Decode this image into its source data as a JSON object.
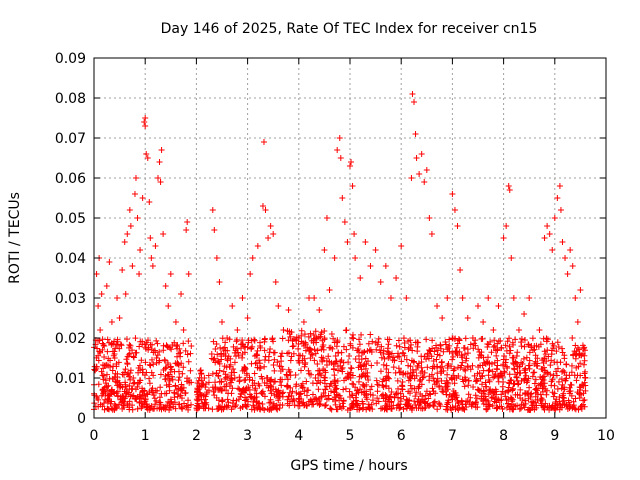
{
  "chart_data": {
    "type": "scatter",
    "title": "Day 146 of 2025, Rate Of TEC Index for receiver cn15",
    "xlabel": "GPS time / hours",
    "ylabel": "ROTI / TECUs",
    "xlim": [
      0,
      10
    ],
    "ylim": [
      0,
      0.09
    ],
    "x_ticks": [
      "0",
      "1",
      "2",
      "3",
      "4",
      "5",
      "6",
      "7",
      "8",
      "9",
      "10"
    ],
    "y_ticks": [
      "0",
      "0.01",
      "0.02",
      "0.03",
      "0.04",
      "0.05",
      "0.06",
      "0.07",
      "0.08",
      "0.09"
    ],
    "grid": true,
    "marker": "+",
    "colors": {
      "series": "#ff0000",
      "grid": "#a0a0a0",
      "axis": "#000000"
    },
    "series": [
      {
        "name": "ROTI",
        "points": [
          [
            0.02,
            0.012
          ],
          [
            0.05,
            0.036
          ],
          [
            0.08,
            0.028
          ],
          [
            0.1,
            0.04
          ],
          [
            0.12,
            0.022
          ],
          [
            0.15,
            0.031
          ],
          [
            0.2,
            0.018
          ],
          [
            0.25,
            0.033
          ],
          [
            0.3,
            0.039
          ],
          [
            0.35,
            0.024
          ],
          [
            0.4,
            0.016
          ],
          [
            0.45,
            0.03
          ],
          [
            0.5,
            0.025
          ],
          [
            0.55,
            0.037
          ],
          [
            0.6,
            0.044
          ],
          [
            0.62,
            0.031
          ],
          [
            0.65,
            0.046
          ],
          [
            0.7,
            0.052
          ],
          [
            0.72,
            0.048
          ],
          [
            0.75,
            0.038
          ],
          [
            0.8,
            0.056
          ],
          [
            0.82,
            0.06
          ],
          [
            0.85,
            0.05
          ],
          [
            0.88,
            0.036
          ],
          [
            0.9,
            0.042
          ],
          [
            0.95,
            0.055
          ],
          [
            0.98,
            0.074
          ],
          [
            1.0,
            0.075
          ],
          [
            1.0,
            0.073
          ],
          [
            1.02,
            0.066
          ],
          [
            1.05,
            0.065
          ],
          [
            1.08,
            0.054
          ],
          [
            1.1,
            0.045
          ],
          [
            1.12,
            0.04
          ],
          [
            1.15,
            0.038
          ],
          [
            1.2,
            0.043
          ],
          [
            1.25,
            0.06
          ],
          [
            1.28,
            0.064
          ],
          [
            1.3,
            0.059
          ],
          [
            1.32,
            0.067
          ],
          [
            1.35,
            0.046
          ],
          [
            1.4,
            0.033
          ],
          [
            1.45,
            0.028
          ],
          [
            1.5,
            0.036
          ],
          [
            1.6,
            0.024
          ],
          [
            1.7,
            0.031
          ],
          [
            1.75,
            0.022
          ],
          [
            1.8,
            0.047
          ],
          [
            1.82,
            0.049
          ],
          [
            1.85,
            0.036
          ],
          [
            1.9,
            0.018
          ],
          [
            2.05,
            0.008
          ],
          [
            2.1,
            0.011
          ],
          [
            2.2,
            0.006
          ],
          [
            2.3,
            0.016
          ],
          [
            2.32,
            0.052
          ],
          [
            2.35,
            0.047
          ],
          [
            2.4,
            0.04
          ],
          [
            2.45,
            0.034
          ],
          [
            2.5,
            0.024
          ],
          [
            2.6,
            0.02
          ],
          [
            2.7,
            0.028
          ],
          [
            2.8,
            0.022
          ],
          [
            2.9,
            0.03
          ],
          [
            3.0,
            0.025
          ],
          [
            3.05,
            0.036
          ],
          [
            3.1,
            0.04
          ],
          [
            3.2,
            0.043
          ],
          [
            3.3,
            0.053
          ],
          [
            3.32,
            0.069
          ],
          [
            3.35,
            0.052
          ],
          [
            3.4,
            0.045
          ],
          [
            3.45,
            0.048
          ],
          [
            3.5,
            0.046
          ],
          [
            3.55,
            0.034
          ],
          [
            3.6,
            0.028
          ],
          [
            3.7,
            0.022
          ],
          [
            3.8,
            0.027
          ],
          [
            3.9,
            0.018
          ],
          [
            4.0,
            0.02
          ],
          [
            4.1,
            0.024
          ],
          [
            4.2,
            0.03
          ],
          [
            4.3,
            0.03
          ],
          [
            4.4,
            0.027
          ],
          [
            4.5,
            0.042
          ],
          [
            4.55,
            0.05
          ],
          [
            4.6,
            0.032
          ],
          [
            4.7,
            0.04
          ],
          [
            4.75,
            0.067
          ],
          [
            4.8,
            0.07
          ],
          [
            4.82,
            0.065
          ],
          [
            4.85,
            0.055
          ],
          [
            4.9,
            0.049
          ],
          [
            4.95,
            0.044
          ],
          [
            5.0,
            0.063
          ],
          [
            5.02,
            0.064
          ],
          [
            5.05,
            0.058
          ],
          [
            5.08,
            0.046
          ],
          [
            5.1,
            0.04
          ],
          [
            5.2,
            0.035
          ],
          [
            5.3,
            0.044
          ],
          [
            5.4,
            0.038
          ],
          [
            5.5,
            0.042
          ],
          [
            5.6,
            0.034
          ],
          [
            5.7,
            0.038
          ],
          [
            5.8,
            0.03
          ],
          [
            5.9,
            0.035
          ],
          [
            6.0,
            0.043
          ],
          [
            6.1,
            0.03
          ],
          [
            6.2,
            0.06
          ],
          [
            6.22,
            0.081
          ],
          [
            6.25,
            0.079
          ],
          [
            6.28,
            0.071
          ],
          [
            6.3,
            0.065
          ],
          [
            6.35,
            0.061
          ],
          [
            6.4,
            0.066
          ],
          [
            6.45,
            0.059
          ],
          [
            6.5,
            0.062
          ],
          [
            6.55,
            0.05
          ],
          [
            6.6,
            0.046
          ],
          [
            6.7,
            0.028
          ],
          [
            6.8,
            0.025
          ],
          [
            6.9,
            0.03
          ],
          [
            7.0,
            0.056
          ],
          [
            7.05,
            0.052
          ],
          [
            7.1,
            0.048
          ],
          [
            7.15,
            0.037
          ],
          [
            7.2,
            0.03
          ],
          [
            7.3,
            0.025
          ],
          [
            7.4,
            0.02
          ],
          [
            7.5,
            0.028
          ],
          [
            7.6,
            0.024
          ],
          [
            7.7,
            0.03
          ],
          [
            7.8,
            0.022
          ],
          [
            7.9,
            0.028
          ],
          [
            8.0,
            0.045
          ],
          [
            8.05,
            0.048
          ],
          [
            8.1,
            0.058
          ],
          [
            8.12,
            0.057
          ],
          [
            8.15,
            0.04
          ],
          [
            8.2,
            0.03
          ],
          [
            8.3,
            0.022
          ],
          [
            8.4,
            0.026
          ],
          [
            8.5,
            0.03
          ],
          [
            8.6,
            0.018
          ],
          [
            8.7,
            0.022
          ],
          [
            8.8,
            0.045
          ],
          [
            8.85,
            0.048
          ],
          [
            8.9,
            0.046
          ],
          [
            8.95,
            0.042
          ],
          [
            9.0,
            0.05
          ],
          [
            9.05,
            0.055
          ],
          [
            9.1,
            0.058
          ],
          [
            9.12,
            0.052
          ],
          [
            9.15,
            0.044
          ],
          [
            9.2,
            0.04
          ],
          [
            9.25,
            0.036
          ],
          [
            9.3,
            0.042
          ],
          [
            9.35,
            0.038
          ],
          [
            9.4,
            0.03
          ],
          [
            9.45,
            0.024
          ],
          [
            9.5,
            0.032
          ],
          [
            9.55,
            0.016
          ],
          [
            9.6,
            0.01
          ]
        ]
      }
    ],
    "dense_band": {
      "description": "dense baseline cluster of ROTI values",
      "segments": [
        {
          "x": [
            0.0,
            1.9
          ],
          "y": [
            0.002,
            0.02
          ]
        },
        {
          "x": [
            2.0,
            2.25
          ],
          "y": [
            0.002,
            0.012
          ]
        },
        {
          "x": [
            2.3,
            3.7
          ],
          "y": [
            0.002,
            0.02
          ]
        },
        {
          "x": [
            3.75,
            4.6
          ],
          "y": [
            0.003,
            0.022
          ]
        },
        {
          "x": [
            4.6,
            5.45
          ],
          "y": [
            0.002,
            0.022
          ]
        },
        {
          "x": [
            5.5,
            9.6
          ],
          "y": [
            0.002,
            0.02
          ]
        }
      ]
    }
  }
}
